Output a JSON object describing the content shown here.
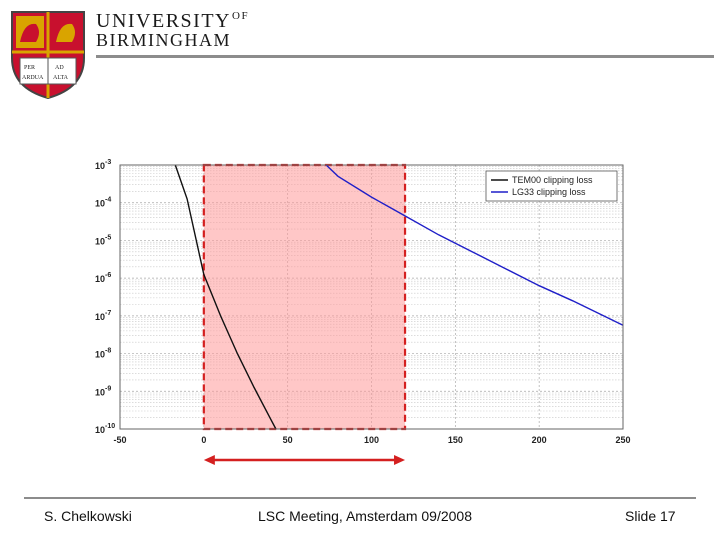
{
  "header": {
    "university_line1": "UNIVERSITY",
    "university_of": "OF",
    "university_line2": "BIRMINGHAM",
    "crest_motto": [
      "PER",
      "ARDUA",
      "AD",
      "ALTA"
    ]
  },
  "chart_data": {
    "type": "line",
    "title": "",
    "xlabel": "",
    "ylabel": "",
    "x_scale": "linear",
    "y_scale": "log",
    "xlim": [
      -50,
      250
    ],
    "ylim_exponent": [
      -10,
      -3
    ],
    "x_ticks": [
      "-50",
      "0",
      "50",
      "100",
      "150",
      "200",
      "250"
    ],
    "y_tick_base": "10",
    "y_tick_exponents": [
      "-3",
      "-4",
      "-5",
      "-6",
      "-7",
      "-8",
      "-9",
      "-10"
    ],
    "grid": true,
    "legend_position": "top-right",
    "series": [
      {
        "name": "TEM00 clipping loss",
        "color": "#111111",
        "x": [
          -17,
          -10,
          0,
          10,
          20,
          30,
          40,
          43
        ],
        "log10_y": [
          -3.0,
          -3.9,
          -5.9,
          -7.0,
          -8.0,
          -8.9,
          -9.75,
          -10.0
        ]
      },
      {
        "name": "LG33 clipping loss",
        "color": "#1f1fc8",
        "x": [
          73,
          80,
          100,
          120,
          140,
          160,
          180,
          200,
          220,
          250
        ],
        "log10_y": [
          -3.0,
          -3.3,
          -3.85,
          -4.35,
          -4.85,
          -5.3,
          -5.75,
          -6.2,
          -6.6,
          -7.25
        ]
      }
    ],
    "highlight_region": {
      "x_start": 0,
      "x_end": 120,
      "color": "#ff9999",
      "border_color": "#d42020"
    },
    "range_arrow": {
      "x_start": 0,
      "x_end": 120,
      "color": "#d42020"
    }
  },
  "footer": {
    "author": "S. Chelkowski",
    "event": "LSC Meeting, Amsterdam 09/2008",
    "slide": "Slide 17"
  }
}
